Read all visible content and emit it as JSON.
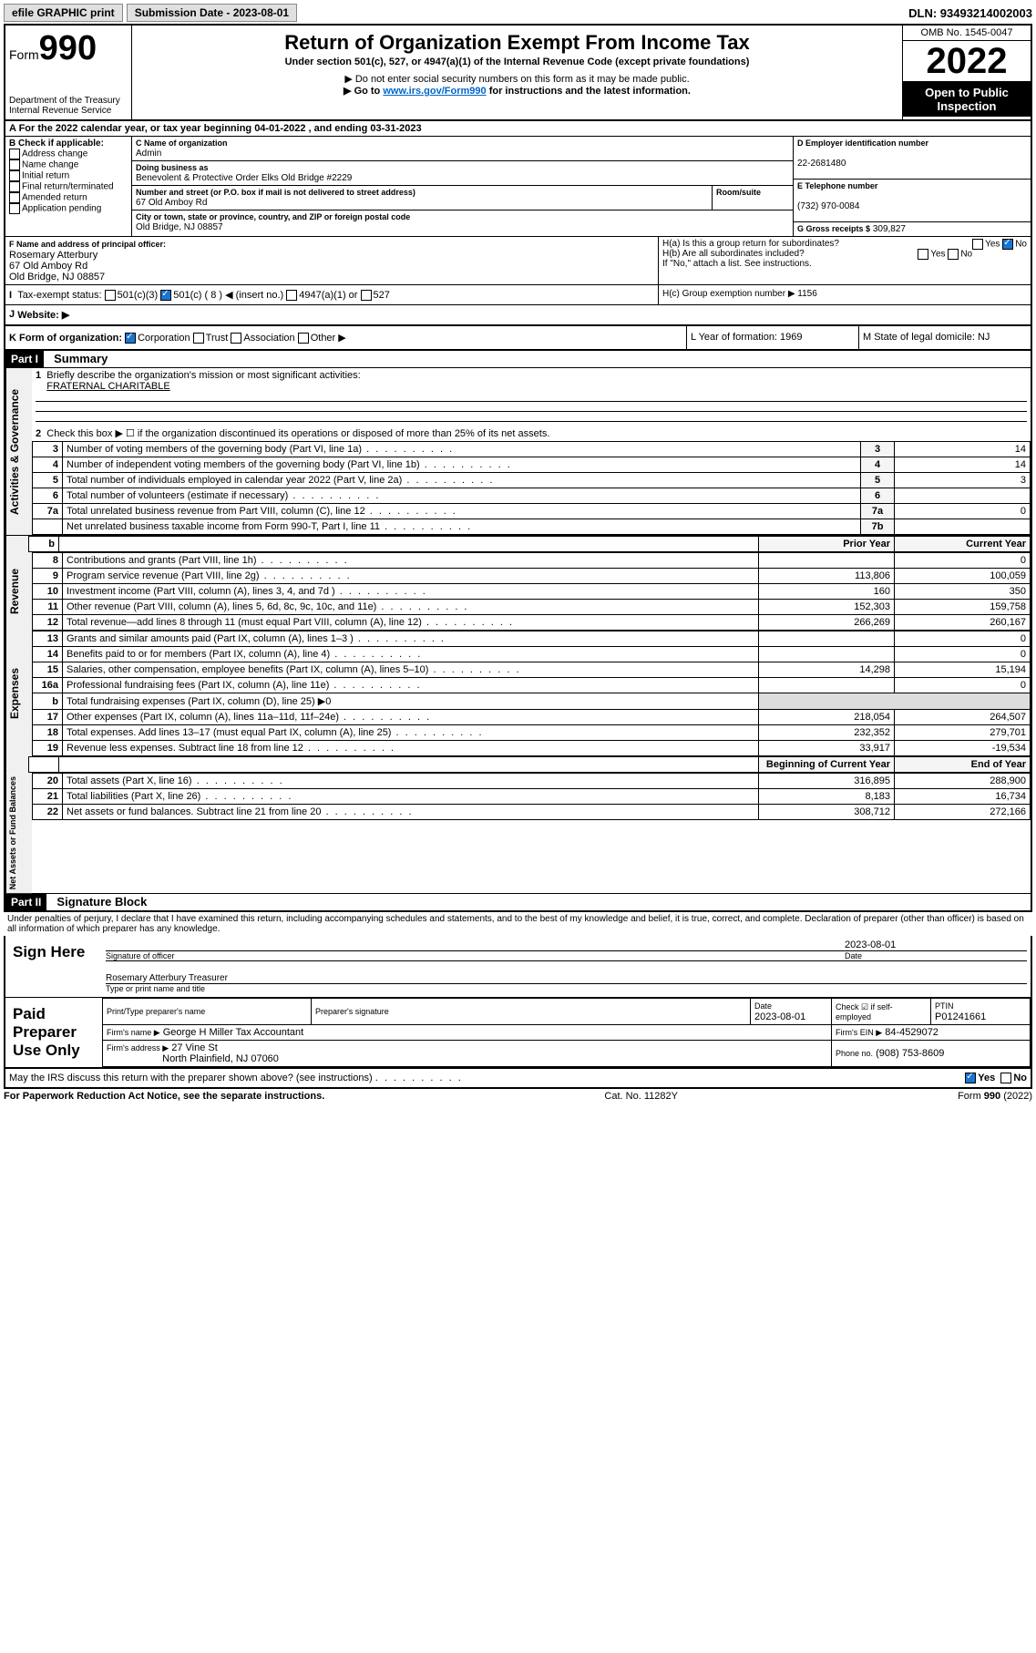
{
  "topbar": {
    "efile": "efile GRAPHIC print",
    "sub_label": "Submission Date - 2023-08-01",
    "dln": "DLN: 93493214002003"
  },
  "header": {
    "form": "Form",
    "num": "990",
    "dept": "Department of the Treasury Internal Revenue Service",
    "title": "Return of Organization Exempt From Income Tax",
    "sub1": "Under section 501(c), 527, or 4947(a)(1) of the Internal Revenue Code (except private foundations)",
    "sub2": "▶ Do not enter social security numbers on this form as it may be made public.",
    "sub3_pre": "▶ Go to ",
    "sub3_link": "www.irs.gov/Form990",
    "sub3_post": " for instructions and the latest information.",
    "omb": "OMB No. 1545-0047",
    "year": "2022",
    "open": "Open to Public Inspection"
  },
  "a_line": "A For the 2022 calendar year, or tax year beginning 04-01-2022   , and ending 03-31-2023",
  "b": {
    "label": "B Check if applicable:",
    "items": [
      "Address change",
      "Name change",
      "Initial return",
      "Final return/terminated",
      "Amended return",
      "Application pending"
    ]
  },
  "c": {
    "name_label": "C Name of organization",
    "name": "Admin",
    "dba_label": "Doing business as",
    "dba": "Benevolent & Protective Order Elks Old Bridge #2229",
    "street_label": "Number and street (or P.O. box if mail is not delivered to street address)",
    "room_label": "Room/suite",
    "street": "67 Old Amboy Rd",
    "city_label": "City or town, state or province, country, and ZIP or foreign postal code",
    "city": "Old Bridge, NJ  08857"
  },
  "d": {
    "label": "D Employer identification number",
    "val": "22-2681480"
  },
  "e": {
    "label": "E Telephone number",
    "val": "(732) 970-0084"
  },
  "g": {
    "label": "G Gross receipts $",
    "val": "309,827"
  },
  "f": {
    "label": "F Name and address of principal officer:",
    "name": "Rosemary Atterbury",
    "addr1": "67 Old Amboy Rd",
    "addr2": "Old Bridge, NJ  08857"
  },
  "h": {
    "a": "H(a)  Is this a group return for subordinates?",
    "b": "H(b)  Are all subordinates included?",
    "note": "If \"No,\" attach a list. See instructions.",
    "c": "H(c)  Group exemption number ▶  1156"
  },
  "i": {
    "label": "Tax-exempt status:",
    "opts": [
      "501(c)(3)",
      "501(c) ( 8 ) ◀ (insert no.)",
      "4947(a)(1) or",
      "527"
    ]
  },
  "j": "Website: ▶",
  "k": {
    "label": "K Form of organization:",
    "opts": [
      "Corporation",
      "Trust",
      "Association",
      "Other ▶"
    ]
  },
  "l": "L Year of formation: 1969",
  "m": "M State of legal domicile: NJ",
  "part1": {
    "hdr": "Part I",
    "title": "Summary",
    "line1_label": "Briefly describe the organization's mission or most significant activities:",
    "line1_val": "FRATERNAL CHARITABLE",
    "line2": "Check this box ▶ ☐  if the organization discontinued its operations or disposed of more than 25% of its net assets.",
    "col_prior": "Prior Year",
    "col_curr": "Current Year",
    "col_beg": "Beginning of Current Year",
    "col_end": "End of Year",
    "sections": {
      "gov": "Activities & Governance",
      "rev": "Revenue",
      "exp": "Expenses",
      "net": "Net Assets or Fund Balances"
    },
    "rows_single": [
      {
        "n": "3",
        "t": "Number of voting members of the governing body (Part VI, line 1a)",
        "box": "3",
        "v": "14"
      },
      {
        "n": "4",
        "t": "Number of independent voting members of the governing body (Part VI, line 1b)",
        "box": "4",
        "v": "14"
      },
      {
        "n": "5",
        "t": "Total number of individuals employed in calendar year 2022 (Part V, line 2a)",
        "box": "5",
        "v": "3"
      },
      {
        "n": "6",
        "t": "Total number of volunteers (estimate if necessary)",
        "box": "6",
        "v": ""
      },
      {
        "n": "7a",
        "t": "Total unrelated business revenue from Part VIII, column (C), line 12",
        "box": "7a",
        "v": "0"
      },
      {
        "n": "",
        "t": "Net unrelated business taxable income from Form 990-T, Part I, line 11",
        "box": "7b",
        "v": ""
      }
    ],
    "rows_rev": [
      {
        "n": "8",
        "t": "Contributions and grants (Part VIII, line 1h)",
        "p": "",
        "c": "0"
      },
      {
        "n": "9",
        "t": "Program service revenue (Part VIII, line 2g)",
        "p": "113,806",
        "c": "100,059"
      },
      {
        "n": "10",
        "t": "Investment income (Part VIII, column (A), lines 3, 4, and 7d )",
        "p": "160",
        "c": "350"
      },
      {
        "n": "11",
        "t": "Other revenue (Part VIII, column (A), lines 5, 6d, 8c, 9c, 10c, and 11e)",
        "p": "152,303",
        "c": "159,758"
      },
      {
        "n": "12",
        "t": "Total revenue—add lines 8 through 11 (must equal Part VIII, column (A), line 12)",
        "p": "266,269",
        "c": "260,167"
      }
    ],
    "rows_exp": [
      {
        "n": "13",
        "t": "Grants and similar amounts paid (Part IX, column (A), lines 1–3 )",
        "p": "",
        "c": "0"
      },
      {
        "n": "14",
        "t": "Benefits paid to or for members (Part IX, column (A), line 4)",
        "p": "",
        "c": "0"
      },
      {
        "n": "15",
        "t": "Salaries, other compensation, employee benefits (Part IX, column (A), lines 5–10)",
        "p": "14,298",
        "c": "15,194"
      },
      {
        "n": "16a",
        "t": "Professional fundraising fees (Part IX, column (A), line 11e)",
        "p": "",
        "c": "0"
      },
      {
        "n": "b",
        "t": "Total fundraising expenses (Part IX, column (D), line 25) ▶0",
        "p": null,
        "c": null
      },
      {
        "n": "17",
        "t": "Other expenses (Part IX, column (A), lines 11a–11d, 11f–24e)",
        "p": "218,054",
        "c": "264,507"
      },
      {
        "n": "18",
        "t": "Total expenses. Add lines 13–17 (must equal Part IX, column (A), line 25)",
        "p": "232,352",
        "c": "279,701"
      },
      {
        "n": "19",
        "t": "Revenue less expenses. Subtract line 18 from line 12",
        "p": "33,917",
        "c": "-19,534"
      }
    ],
    "rows_net": [
      {
        "n": "20",
        "t": "Total assets (Part X, line 16)",
        "p": "316,895",
        "c": "288,900"
      },
      {
        "n": "21",
        "t": "Total liabilities (Part X, line 26)",
        "p": "8,183",
        "c": "16,734"
      },
      {
        "n": "22",
        "t": "Net assets or fund balances. Subtract line 21 from line 20",
        "p": "308,712",
        "c": "272,166"
      }
    ]
  },
  "part2": {
    "hdr": "Part II",
    "title": "Signature Block",
    "decl": "Under penalties of perjury, I declare that I have examined this return, including accompanying schedules and statements, and to the best of my knowledge and belief, it is true, correct, and complete. Declaration of preparer (other than officer) is based on all information of which preparer has any knowledge.",
    "sign_here": "Sign Here",
    "sig_officer": "Signature of officer",
    "sig_date": "2023-08-01",
    "date_label": "Date",
    "officer_name": "Rosemary Atterbury  Treasurer",
    "type_name": "Type or print name and title",
    "paid": "Paid Preparer Use Only",
    "prep_name_label": "Print/Type preparer's name",
    "prep_sig_label": "Preparer's signature",
    "prep_date": "2023-08-01",
    "check_self": "Check ☑ if self-employed",
    "ptin_label": "PTIN",
    "ptin": "P01241661",
    "firm_name_label": "Firm's name   ▶",
    "firm_name": "George H Miller Tax Accountant",
    "firm_ein_label": "Firm's EIN ▶",
    "firm_ein": "84-4529072",
    "firm_addr_label": "Firm's address ▶",
    "firm_addr": "27 Vine St",
    "firm_city": "North Plainfield, NJ  07060",
    "firm_phone_label": "Phone no.",
    "firm_phone": "(908) 753-8609",
    "discuss": "May the IRS discuss this return with the preparer shown above? (see instructions)",
    "yes": "Yes",
    "no": "No"
  },
  "footer": {
    "left": "For Paperwork Reduction Act Notice, see the separate instructions.",
    "mid": "Cat. No. 11282Y",
    "right": "Form 990 (2022)"
  }
}
